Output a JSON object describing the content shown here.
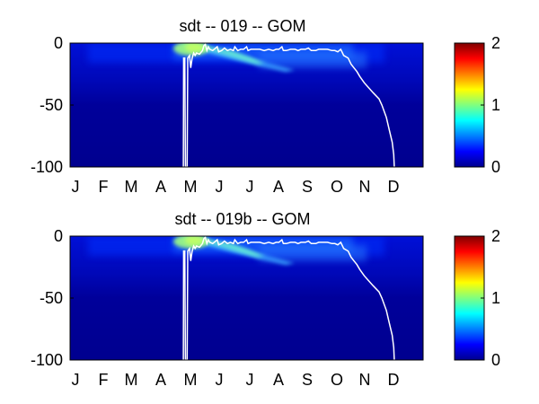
{
  "chart_data": [
    {
      "type": "heatmap",
      "title": "sdt -- 019 -- GOM",
      "x_ticks": [
        "J",
        "F",
        "M",
        "A",
        "M",
        "J",
        "J",
        "A",
        "S",
        "O",
        "N",
        "D"
      ],
      "y_ticks": [
        "0",
        "-50",
        "-100"
      ],
      "ylim": [
        -100,
        0
      ],
      "xlim_months": [
        0,
        12
      ],
      "colormap": "jet",
      "clim": [
        0,
        2
      ],
      "colorbar_ticks": [
        "0",
        "1",
        "2"
      ],
      "line": {
        "color": "#ffffff",
        "points": [
          [
            3.85,
            -100
          ],
          [
            3.86,
            -12
          ],
          [
            3.9,
            -12
          ],
          [
            3.92,
            -100
          ],
          [
            3.98,
            -100
          ],
          [
            4.0,
            -12
          ],
          [
            4.06,
            -10
          ],
          [
            4.1,
            -20
          ],
          [
            4.15,
            -12
          ],
          [
            4.2,
            -8
          ],
          [
            4.25,
            -10
          ],
          [
            4.3,
            -8
          ],
          [
            4.4,
            -9
          ],
          [
            4.5,
            -6
          ],
          [
            4.55,
            -2
          ],
          [
            4.6,
            -1
          ],
          [
            4.65,
            -6
          ],
          [
            4.7,
            -3
          ],
          [
            4.75,
            -5
          ],
          [
            4.85,
            -6
          ],
          [
            4.95,
            -4
          ],
          [
            5.0,
            -3
          ],
          [
            5.05,
            -7
          ],
          [
            5.15,
            -6
          ],
          [
            5.25,
            -4
          ],
          [
            5.35,
            -6
          ],
          [
            5.45,
            -5
          ],
          [
            5.55,
            -6
          ],
          [
            5.6,
            -3
          ],
          [
            5.7,
            -6
          ],
          [
            5.8,
            -5
          ],
          [
            5.9,
            -5
          ],
          [
            6.0,
            -3
          ],
          [
            6.05,
            -6
          ],
          [
            6.15,
            -5
          ],
          [
            6.3,
            -5
          ],
          [
            6.45,
            -5
          ],
          [
            6.6,
            -6
          ],
          [
            6.75,
            -5
          ],
          [
            6.9,
            -6
          ],
          [
            7.0,
            -5
          ],
          [
            7.1,
            -5
          ],
          [
            7.2,
            -3
          ],
          [
            7.25,
            -6
          ],
          [
            7.35,
            -6
          ],
          [
            7.5,
            -5
          ],
          [
            7.65,
            -5
          ],
          [
            7.75,
            -6
          ],
          [
            7.85,
            -5
          ],
          [
            8.0,
            -5
          ],
          [
            8.1,
            -4
          ],
          [
            8.2,
            -6
          ],
          [
            8.35,
            -6
          ],
          [
            8.45,
            -5
          ],
          [
            8.6,
            -5
          ],
          [
            8.75,
            -5
          ],
          [
            8.9,
            -6
          ],
          [
            9.0,
            -6
          ],
          [
            9.1,
            -7
          ],
          [
            9.2,
            -5
          ],
          [
            9.3,
            -10
          ],
          [
            9.45,
            -12
          ],
          [
            9.55,
            -17
          ],
          [
            9.65,
            -20
          ],
          [
            9.75,
            -23
          ],
          [
            9.85,
            -27
          ],
          [
            10.0,
            -32
          ],
          [
            10.15,
            -36
          ],
          [
            10.3,
            -40
          ],
          [
            10.5,
            -45
          ],
          [
            10.6,
            -50
          ],
          [
            10.75,
            -60
          ],
          [
            10.85,
            -70
          ],
          [
            10.95,
            -80
          ],
          [
            11.0,
            -90
          ],
          [
            11.02,
            -100
          ]
        ]
      }
    },
    {
      "type": "heatmap",
      "title": "sdt -- 019b -- GOM",
      "x_ticks": [
        "J",
        "F",
        "M",
        "A",
        "M",
        "J",
        "J",
        "A",
        "S",
        "O",
        "N",
        "D"
      ],
      "y_ticks": [
        "0",
        "-50",
        "-100"
      ],
      "ylim": [
        -100,
        0
      ],
      "xlim_months": [
        0,
        12
      ],
      "colormap": "jet",
      "clim": [
        0,
        2
      ],
      "colorbar_ticks": [
        "0",
        "1",
        "2"
      ],
      "line": {
        "color": "#ffffff",
        "points": [
          [
            3.85,
            -100
          ],
          [
            3.86,
            -12
          ],
          [
            3.9,
            -12
          ],
          [
            3.92,
            -100
          ],
          [
            3.98,
            -100
          ],
          [
            4.0,
            -12
          ],
          [
            4.06,
            -10
          ],
          [
            4.1,
            -20
          ],
          [
            4.15,
            -12
          ],
          [
            4.2,
            -8
          ],
          [
            4.25,
            -10
          ],
          [
            4.3,
            -8
          ],
          [
            4.4,
            -9
          ],
          [
            4.5,
            -6
          ],
          [
            4.55,
            -2
          ],
          [
            4.6,
            -1
          ],
          [
            4.65,
            -6
          ],
          [
            4.7,
            -3
          ],
          [
            4.75,
            -5
          ],
          [
            4.85,
            -6
          ],
          [
            4.95,
            -4
          ],
          [
            5.0,
            -3
          ],
          [
            5.05,
            -7
          ],
          [
            5.15,
            -6
          ],
          [
            5.25,
            -4
          ],
          [
            5.35,
            -6
          ],
          [
            5.45,
            -5
          ],
          [
            5.55,
            -6
          ],
          [
            5.6,
            -3
          ],
          [
            5.7,
            -6
          ],
          [
            5.8,
            -5
          ],
          [
            5.9,
            -5
          ],
          [
            6.0,
            -3
          ],
          [
            6.05,
            -6
          ],
          [
            6.15,
            -5
          ],
          [
            6.3,
            -5
          ],
          [
            6.45,
            -5
          ],
          [
            6.6,
            -6
          ],
          [
            6.75,
            -5
          ],
          [
            6.9,
            -6
          ],
          [
            7.0,
            -5
          ],
          [
            7.1,
            -5
          ],
          [
            7.2,
            -3
          ],
          [
            7.25,
            -6
          ],
          [
            7.35,
            -6
          ],
          [
            7.5,
            -5
          ],
          [
            7.65,
            -5
          ],
          [
            7.75,
            -6
          ],
          [
            7.85,
            -5
          ],
          [
            8.0,
            -5
          ],
          [
            8.1,
            -4
          ],
          [
            8.2,
            -6
          ],
          [
            8.35,
            -6
          ],
          [
            8.45,
            -5
          ],
          [
            8.6,
            -5
          ],
          [
            8.75,
            -5
          ],
          [
            8.9,
            -6
          ],
          [
            9.0,
            -6
          ],
          [
            9.1,
            -7
          ],
          [
            9.2,
            -5
          ],
          [
            9.3,
            -10
          ],
          [
            9.45,
            -12
          ],
          [
            9.55,
            -17
          ],
          [
            9.65,
            -20
          ],
          [
            9.75,
            -23
          ],
          [
            9.85,
            -27
          ],
          [
            10.0,
            -32
          ],
          [
            10.15,
            -36
          ],
          [
            10.3,
            -40
          ],
          [
            10.5,
            -45
          ],
          [
            10.6,
            -50
          ],
          [
            10.75,
            -60
          ],
          [
            10.85,
            -70
          ],
          [
            10.95,
            -80
          ],
          [
            11.0,
            -90
          ],
          [
            11.02,
            -100
          ]
        ]
      }
    }
  ]
}
